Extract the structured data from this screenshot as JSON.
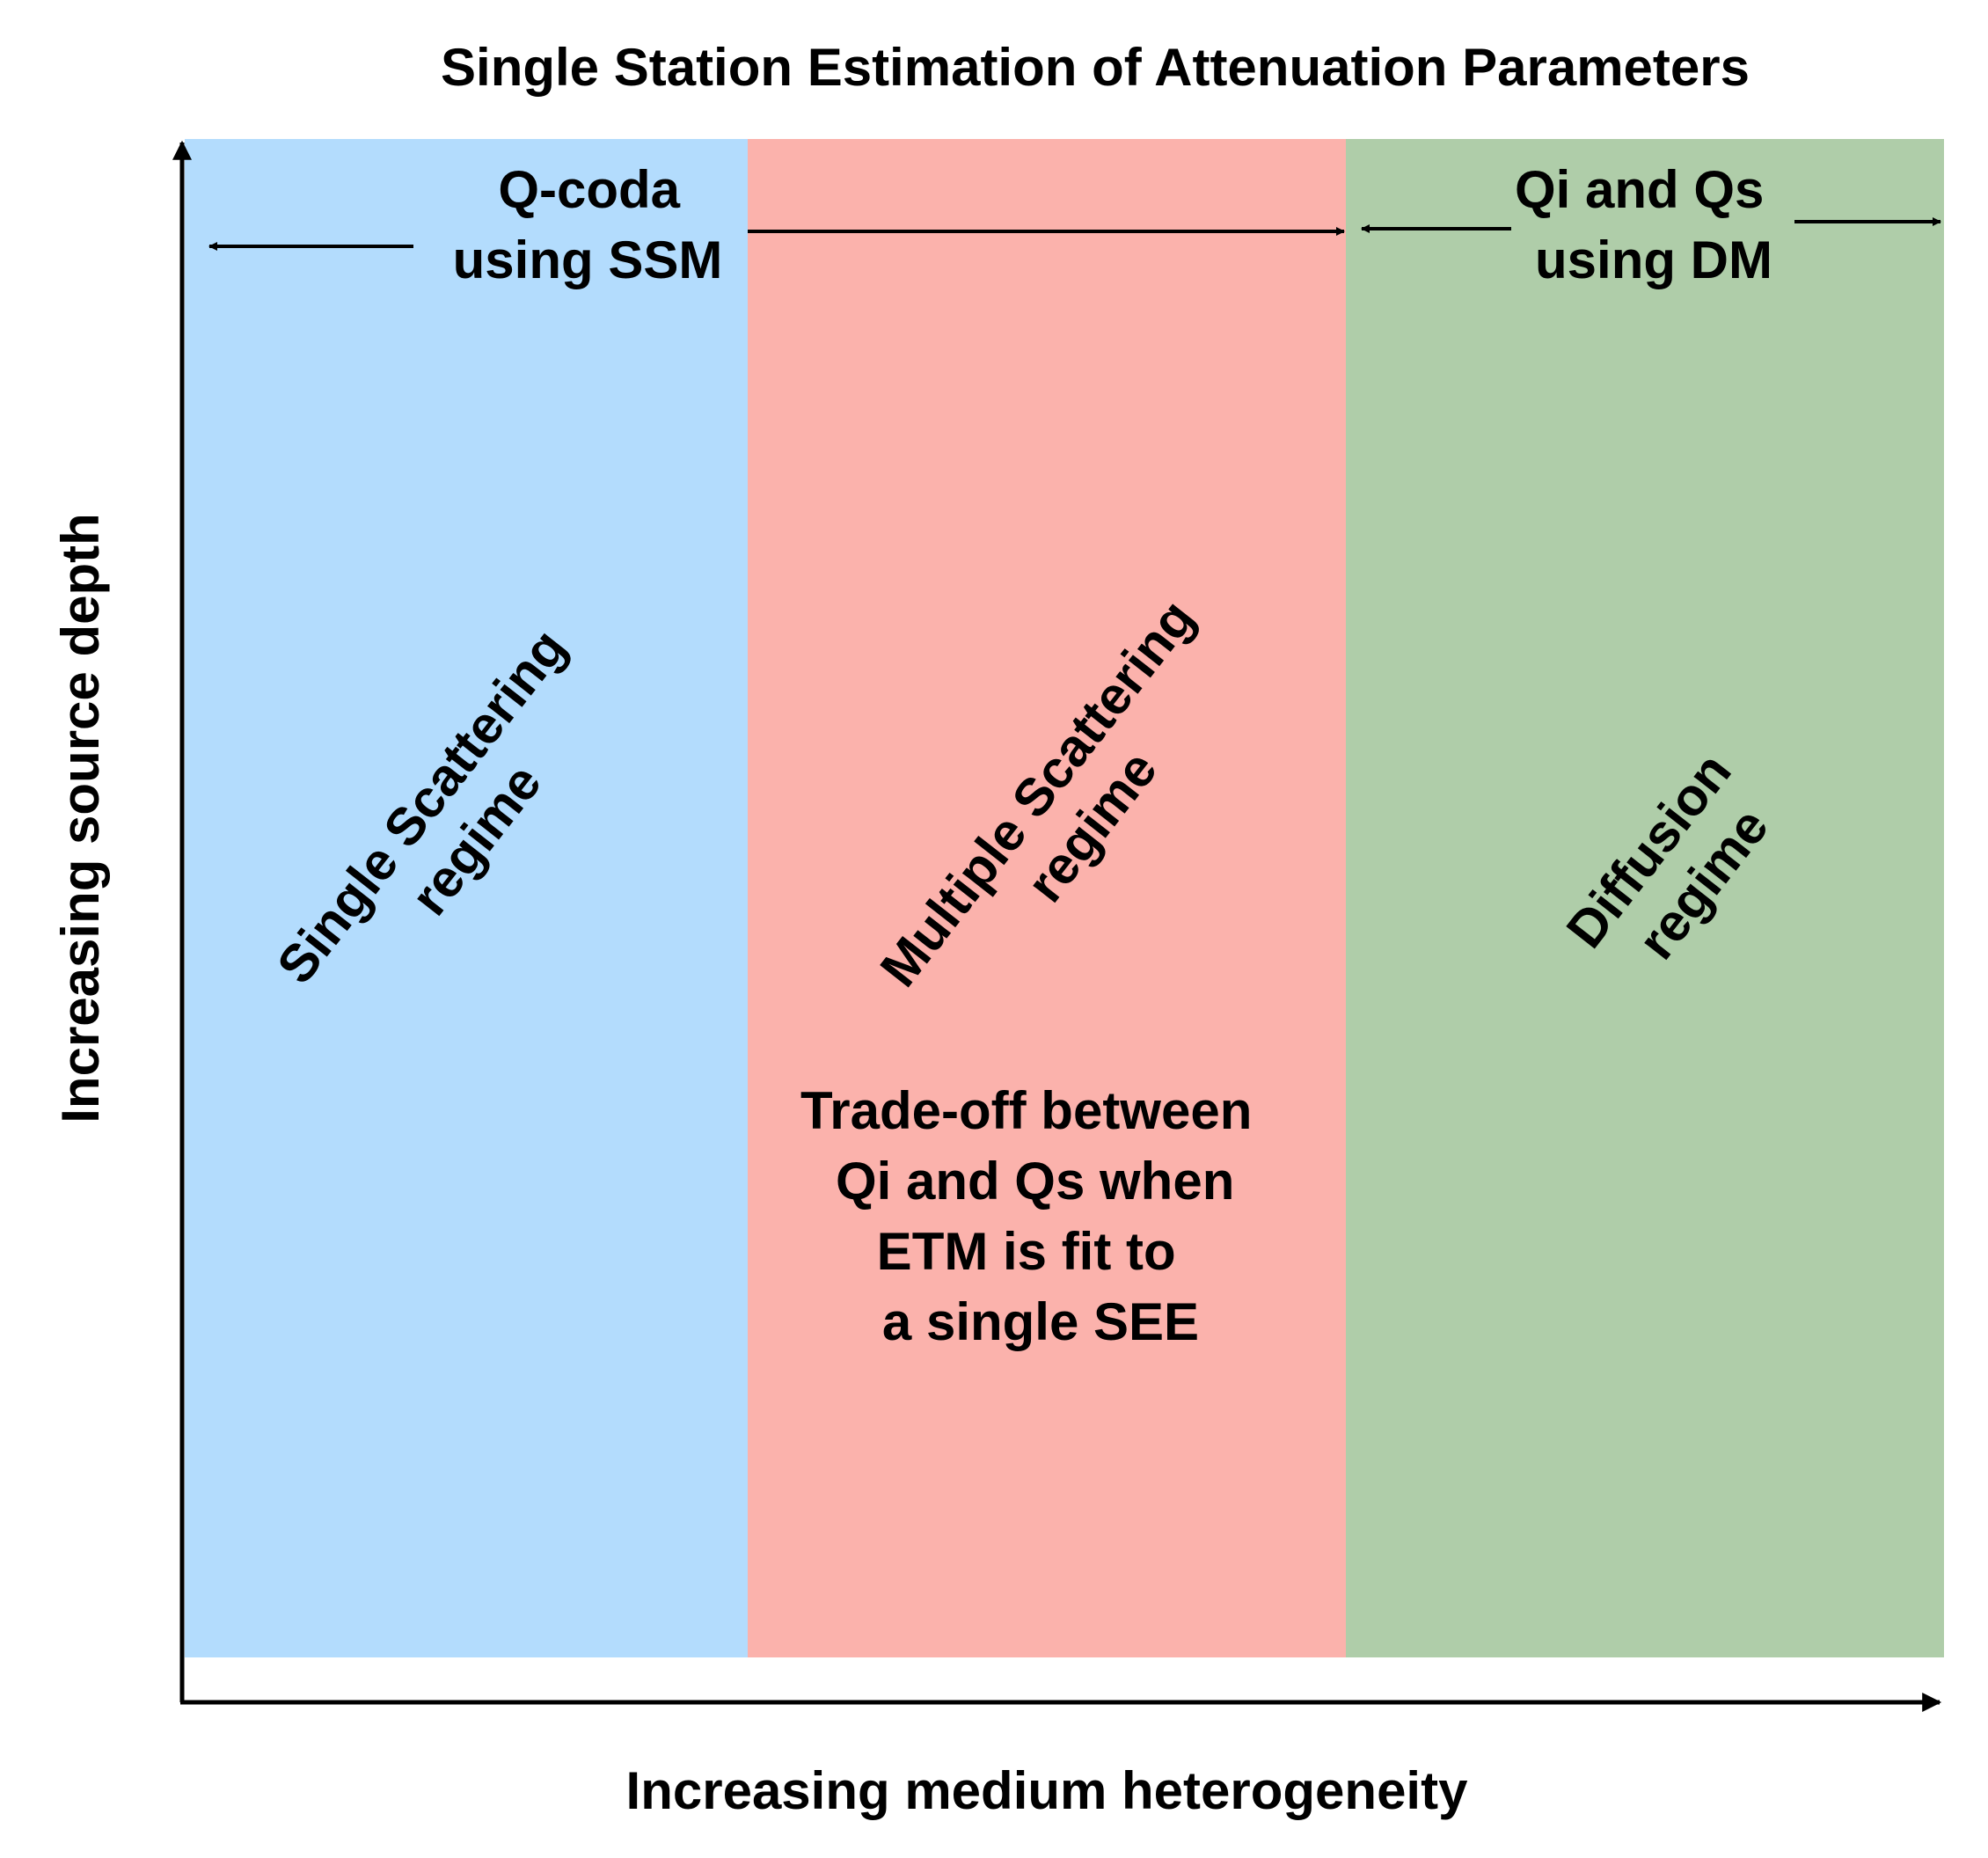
{
  "title": "Single Station Estimation of Attenuation Parameters",
  "x_axis_label": "Increasing medium heterogeneity",
  "y_axis_label": "Increasing source depth",
  "regions": [
    {
      "id": "single",
      "color": "#b3dcfd",
      "lines": [
        "Single Scattering",
        "regime"
      ]
    },
    {
      "id": "multiple",
      "color": "#fbb2ac",
      "lines": [
        "Multiple Scattering",
        "regime"
      ]
    },
    {
      "id": "diffusion",
      "color": "#afcda9",
      "lines": [
        "Diffusion",
        "regime"
      ]
    }
  ],
  "methods": {
    "q_coda": [
      "Q-coda",
      "using SSM"
    ],
    "qi_qs": [
      "Qi and Qs",
      "using DM"
    ]
  },
  "tradeoff_note": [
    "Trade-off between",
    "Qi and Qs when",
    "ETM is fit to",
    "a single SEE"
  ]
}
